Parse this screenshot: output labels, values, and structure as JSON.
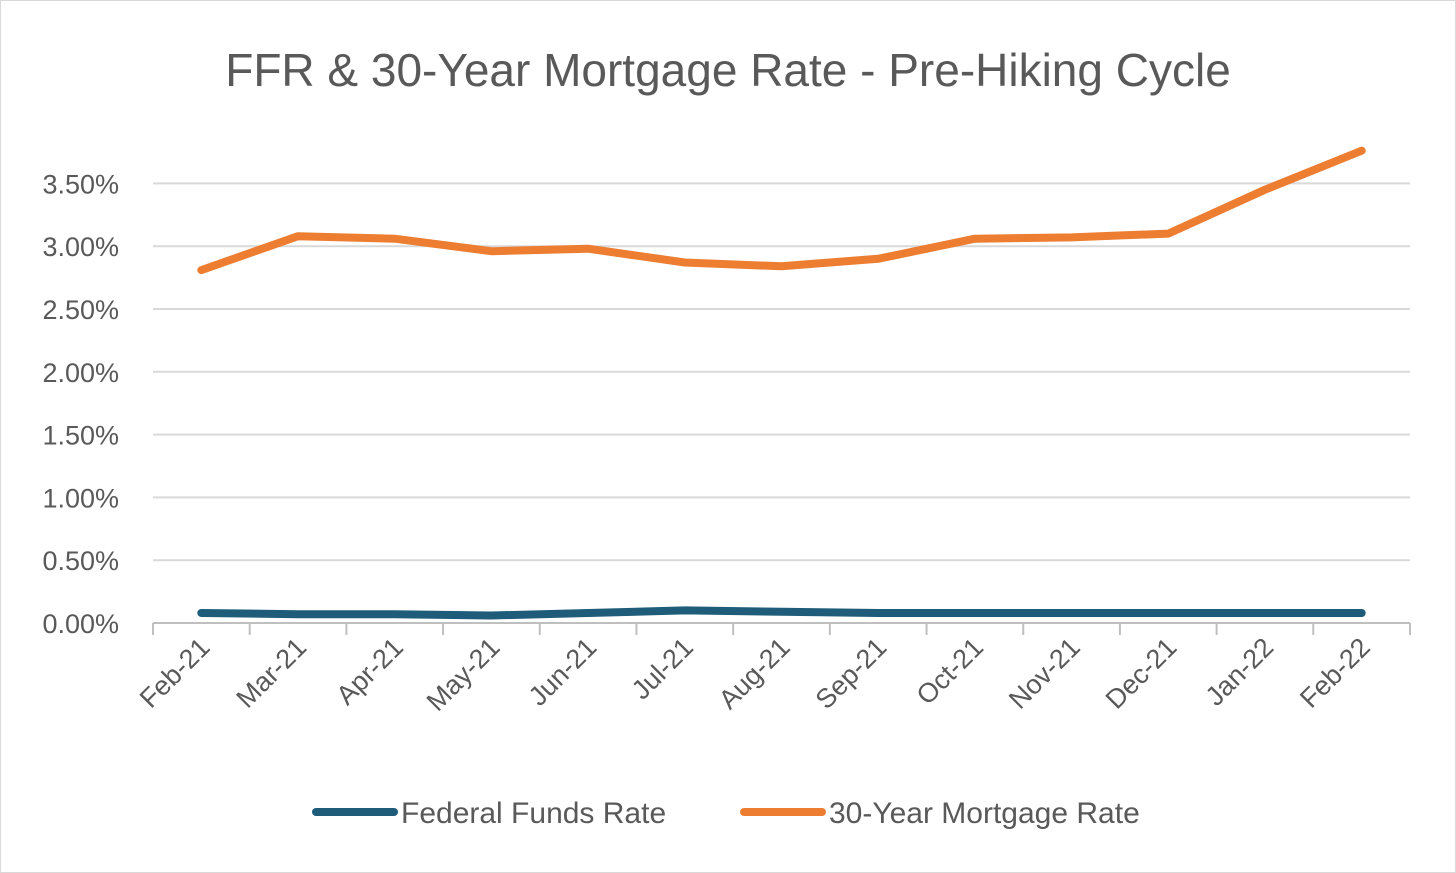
{
  "chart_data": {
    "type": "line",
    "title": "FFR & 30-Year Mortgage Rate - Pre-Hiking Cycle",
    "categories": [
      "Feb-21",
      "Mar-21",
      "Apr-21",
      "May-21",
      "Jun-21",
      "Jul-21",
      "Aug-21",
      "Sep-21",
      "Oct-21",
      "Nov-21",
      "Dec-21",
      "Jan-22",
      "Feb-22"
    ],
    "y_ticks": [
      "0.00%",
      "0.50%",
      "1.00%",
      "1.50%",
      "2.00%",
      "2.50%",
      "3.00%",
      "3.50%"
    ],
    "ylim": [
      0,
      3.75
    ],
    "y_unit": "%",
    "grid": true,
    "legend_position": "bottom",
    "series": [
      {
        "name": "Federal Funds Rate",
        "color": "#1f5c7a",
        "values": [
          0.08,
          0.07,
          0.07,
          0.06,
          0.08,
          0.1,
          0.09,
          0.08,
          0.08,
          0.08,
          0.08,
          0.08,
          0.08
        ]
      },
      {
        "name": "30-Year Mortgage Rate",
        "color": "#ed7d31",
        "values": [
          2.81,
          3.08,
          3.06,
          2.96,
          2.98,
          2.87,
          2.84,
          2.9,
          3.06,
          3.07,
          3.1,
          3.45,
          3.76
        ]
      }
    ]
  }
}
